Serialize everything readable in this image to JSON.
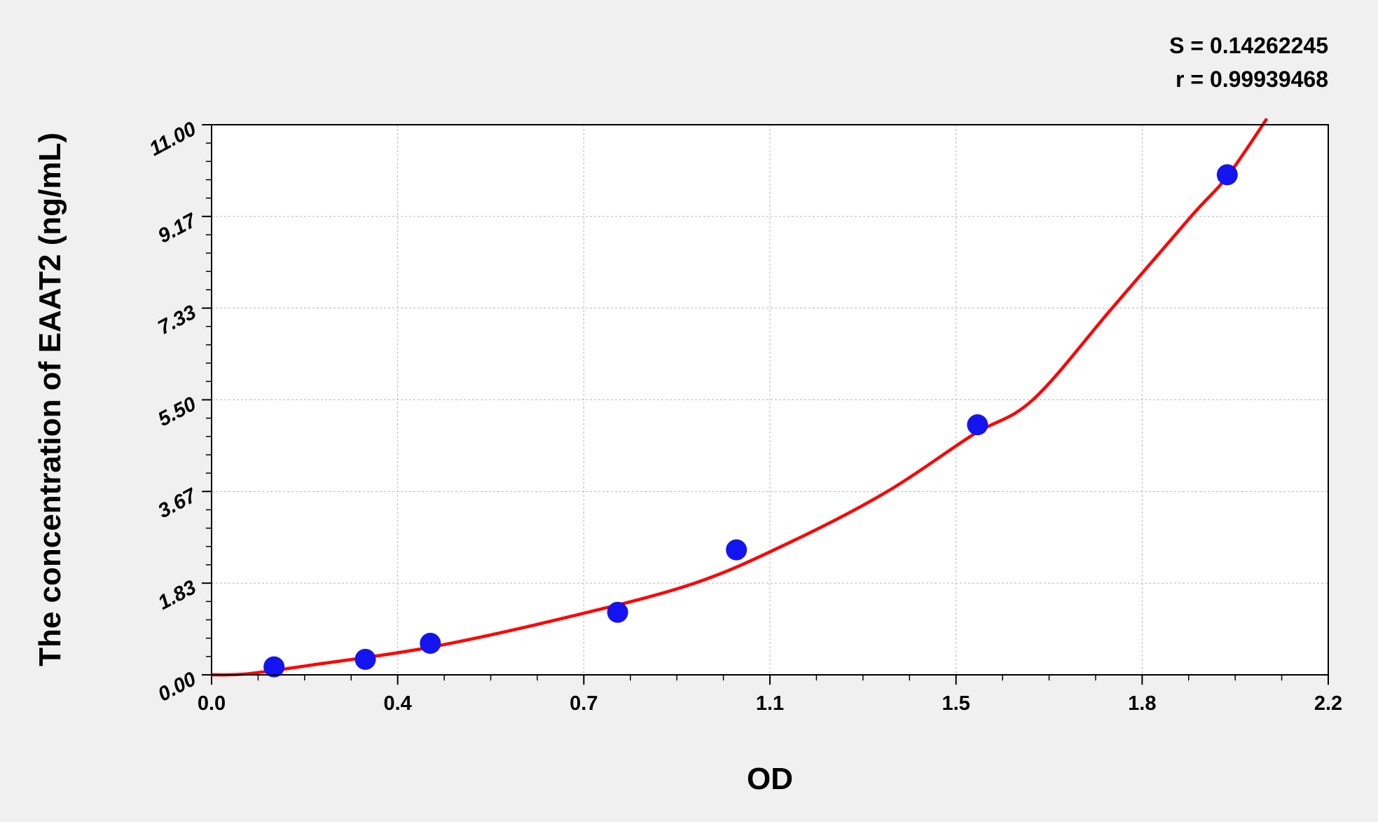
{
  "chart_data": {
    "type": "scatter",
    "xlabel": "OD",
    "ylabel": "The concentration of EAAT2 (ng/mL)",
    "xlim": [
      0,
      2.2
    ],
    "ylim": [
      0,
      11
    ],
    "x_ticks": [
      "0.0",
      "0.4",
      "0.7",
      "1.1",
      "1.5",
      "1.8",
      "2.2"
    ],
    "y_ticks": [
      "0.00",
      "1.83",
      "3.67",
      "5.50",
      "7.33",
      "9.17",
      "11.00"
    ],
    "grid": true,
    "annotations": [
      "S = 0.14262245",
      "r = 0.99939468"
    ],
    "points": {
      "color": "#1414f0",
      "x": [
        0.123,
        0.303,
        0.431,
        0.8,
        1.034,
        1.509,
        2.001
      ],
      "y": [
        0.16,
        0.31,
        0.63,
        1.25,
        2.5,
        5.0,
        10.0
      ]
    },
    "fit_curve": {
      "color": "#ff0000",
      "x": [
        0.0,
        0.07,
        0.2,
        0.43,
        0.7,
        0.951,
        1.15,
        1.332,
        1.5,
        1.618,
        1.774,
        1.93,
        2.0,
        2.079
      ],
      "y": [
        0.0,
        0.02,
        0.2,
        0.55,
        1.15,
        1.83,
        2.7,
        3.67,
        4.8,
        5.5,
        7.33,
        9.17,
        9.95,
        11.12
      ]
    }
  }
}
